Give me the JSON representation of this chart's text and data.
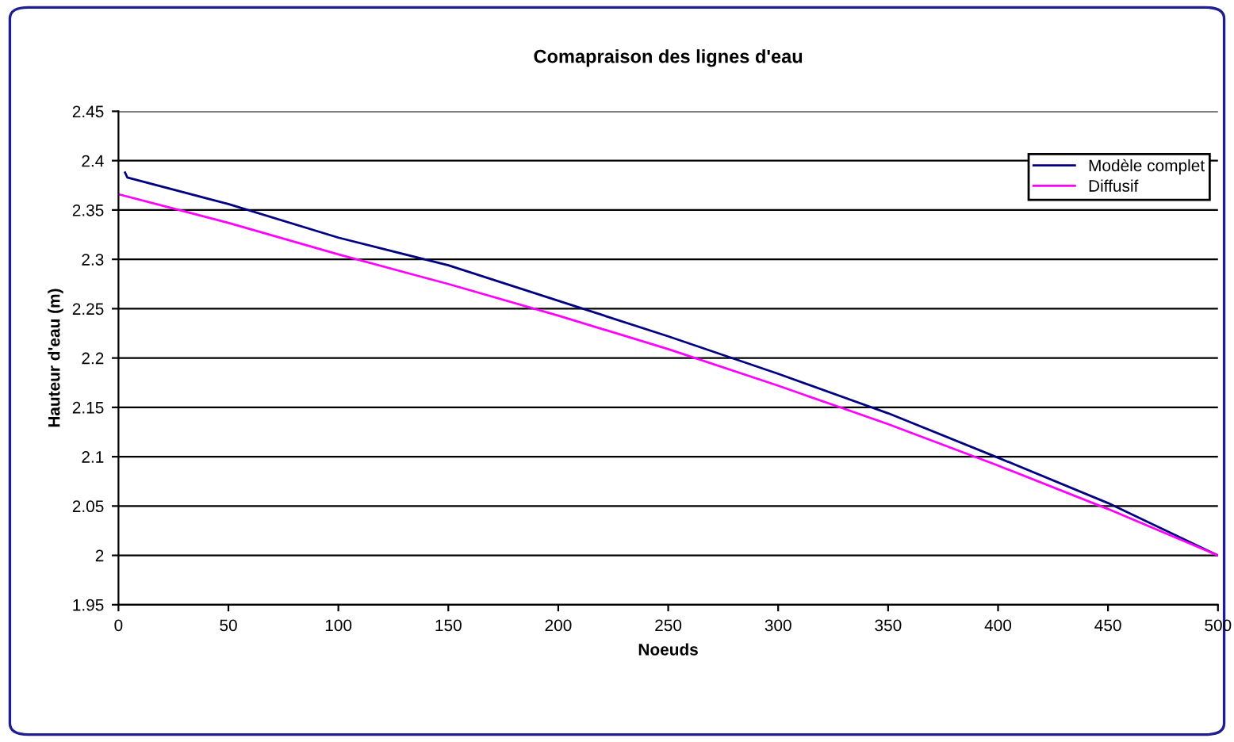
{
  "chart_data": {
    "type": "line",
    "title": "Comapraison des lignes d'eau",
    "xlabel": "Noeuds",
    "ylabel": "Hauteur d'eau (m)",
    "xlim": [
      0,
      500
    ],
    "xticks": [
      0,
      50,
      100,
      150,
      200,
      250,
      300,
      350,
      400,
      450,
      500
    ],
    "ylim": [
      1.95,
      2.45
    ],
    "yticks": [
      1.95,
      2,
      2.05,
      2.1,
      2.15,
      2.2,
      2.25,
      2.3,
      2.35,
      2.4,
      2.45
    ],
    "grid": "y",
    "legend": "top right",
    "marker": "none",
    "line_style": "solid",
    "series": [
      {
        "name": "Modèle complet",
        "color": "#000080",
        "x": [
          3,
          4,
          50,
          100,
          150,
          200,
          250,
          300,
          350,
          400,
          450,
          500
        ],
        "values": [
          2.388,
          2.383,
          2.356,
          2.322,
          2.294,
          2.258,
          2.222,
          2.184,
          2.144,
          2.099,
          2.053,
          2.0
        ]
      },
      {
        "name": "Diffusif",
        "color": "#ff00ff",
        "x": [
          0,
          50,
          100,
          150,
          200,
          250,
          300,
          350,
          400,
          450,
          500
        ],
        "values": [
          2.366,
          2.337,
          2.305,
          2.275,
          2.243,
          2.209,
          2.172,
          2.133,
          2.091,
          2.047,
          2.0
        ]
      }
    ]
  }
}
